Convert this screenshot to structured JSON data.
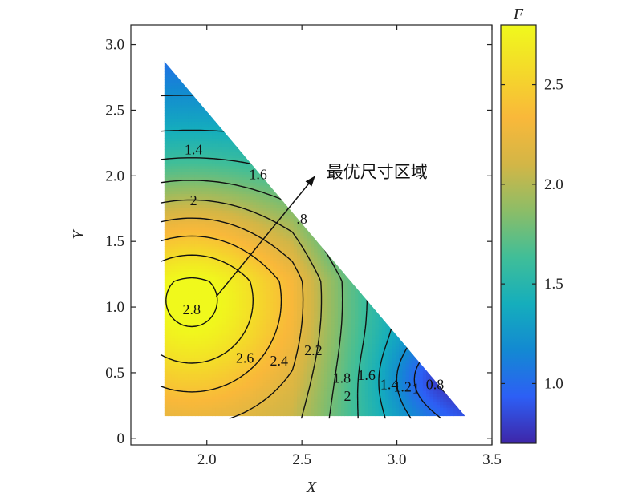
{
  "chart_data": {
    "type": "contour",
    "xlabel": "X",
    "ylabel": "Y",
    "xlim": [
      1.6,
      3.5
    ],
    "ylim": [
      -0.05,
      3.15
    ],
    "x_ticks": [
      "2.0",
      "2.5",
      "3.0",
      "3.5"
    ],
    "x_tick_values": [
      2.0,
      2.5,
      3.0,
      3.5
    ],
    "y_ticks": [
      "0",
      "0.5",
      "1.0",
      "1.5",
      "2.0",
      "2.5",
      "3.0"
    ],
    "y_tick_values": [
      0,
      0.5,
      1.0,
      1.5,
      2.0,
      2.5,
      3.0
    ],
    "domain": {
      "shape": "triangle",
      "vertices": [
        [
          1.76,
          0.15
        ],
        [
          3.37,
          0.15
        ],
        [
          1.76,
          2.9
        ]
      ]
    },
    "field_peak": {
      "x": 1.92,
      "y": 1.05,
      "value": 2.85
    },
    "field_low": {
      "x": 3.22,
      "y": 0.45,
      "value": 0.7
    },
    "contour_levels": [
      0.8,
      1.0,
      1.2,
      1.4,
      1.6,
      1.8,
      2.0,
      2.2,
      2.4,
      2.6,
      2.8
    ],
    "contour_labels": [
      {
        "text": "1.4",
        "x": 1.93,
        "y": 2.19
      },
      {
        "text": "1.6",
        "x": 2.27,
        "y": 2.0
      },
      {
        "text": "2",
        "x": 1.93,
        "y": 1.8
      },
      {
        "text": ".8",
        "x": 2.5,
        "y": 1.66
      },
      {
        "text": "2.8",
        "x": 1.92,
        "y": 0.97
      },
      {
        "text": "2.6",
        "x": 2.2,
        "y": 0.6
      },
      {
        "text": "2.4",
        "x": 2.38,
        "y": 0.58
      },
      {
        "text": "2.2",
        "x": 2.56,
        "y": 0.66
      },
      {
        "text": "1.8",
        "x": 2.71,
        "y": 0.45
      },
      {
        "text": "2",
        "x": 2.74,
        "y": 0.31
      },
      {
        "text": "1.6",
        "x": 2.84,
        "y": 0.47
      },
      {
        "text": "1.4",
        "x": 2.96,
        "y": 0.4
      },
      {
        "text": "1.2",
        "x": 3.03,
        "y": 0.38
      },
      {
        "text": "1",
        "x": 3.1,
        "y": 0.37
      },
      {
        "text": "0.8",
        "x": 3.2,
        "y": 0.4
      }
    ],
    "annotation": {
      "text": "最优尺寸区域",
      "arrow_from": [
        2.05,
        1.08
      ],
      "arrow_to": [
        2.57,
        2.0
      ]
    },
    "colorbar": {
      "title": "F",
      "range": [
        0.7,
        2.8
      ],
      "ticks": [
        "1.0",
        "1.5",
        "2.0",
        "2.5"
      ],
      "tick_values": [
        1.0,
        1.5,
        2.0,
        2.5
      ]
    },
    "colormap": [
      "#3e26a8",
      "#2d5ff5",
      "#1389d2",
      "#15aebc",
      "#40be98",
      "#8cbd67",
      "#d3b646",
      "#f9b83a",
      "#f4d92a",
      "#f0f91c"
    ],
    "grid": false
  }
}
